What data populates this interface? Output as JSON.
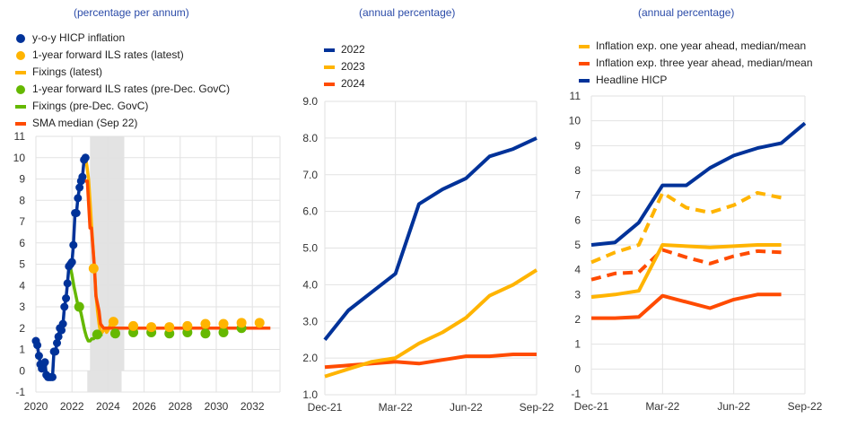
{
  "colors": {
    "blue": "#003299",
    "yellow": "#ffb400",
    "orange": "#ff4b00",
    "green": "#65b800",
    "grid": "#e2e2e2",
    "shade": "#d9d9d9",
    "subtitle": "#2b4ba8"
  },
  "chart_data": [
    {
      "type": "line",
      "title": "(percentage per annum)",
      "xlabel": "",
      "ylabel": "",
      "xlim": [
        2020,
        2033.5
      ],
      "ylim": [
        -1,
        11
      ],
      "x_ticks": [
        "2020",
        "2022",
        "2024",
        "2026",
        "2028",
        "2030",
        "2032"
      ],
      "y_ticks": [
        "-1",
        "0",
        "1",
        "2",
        "3",
        "4",
        "5",
        "6",
        "7",
        "8",
        "9",
        "10",
        "11"
      ],
      "grid": true,
      "legend_position": "top-left",
      "shaded_range": [
        2022.9,
        2024.9
      ],
      "legend": [
        {
          "label": "y-o-y HICP inflation",
          "symbol": "dot",
          "color": "#003299"
        },
        {
          "label": "1-year forward ILS rates (latest)",
          "symbol": "dot",
          "color": "#ffb400"
        },
        {
          "label": "Fixings (latest)",
          "symbol": "bar",
          "color": "#ffb400"
        },
        {
          "label": "1-year forward ILS rates (pre-Dec. GovC)",
          "symbol": "dot",
          "color": "#65b800"
        },
        {
          "label": "Fixings (pre-Dec. GovC)",
          "symbol": "bar",
          "color": "#65b800"
        },
        {
          "label": "SMA median (Sep 22)",
          "symbol": "bar",
          "color": "#ff4b00"
        }
      ],
      "series": [
        {
          "name": "y-o-y HICP inflation",
          "style": "line-markers",
          "color": "#003299",
          "x": [
            2020.0,
            2020.08,
            2020.17,
            2020.25,
            2020.33,
            2020.42,
            2020.5,
            2020.58,
            2020.67,
            2020.75,
            2020.83,
            2020.92,
            2021.0,
            2021.08,
            2021.17,
            2021.25,
            2021.33,
            2021.42,
            2021.5,
            2021.58,
            2021.67,
            2021.75,
            2021.83,
            2021.92,
            2022.0,
            2022.08,
            2022.17,
            2022.25,
            2022.33,
            2022.42,
            2022.5,
            2022.58,
            2022.67,
            2022.75
          ],
          "values": [
            1.4,
            1.2,
            0.7,
            0.3,
            0.1,
            0.3,
            0.4,
            -0.2,
            -0.3,
            -0.3,
            -0.3,
            -0.3,
            0.9,
            0.9,
            1.3,
            1.6,
            2.0,
            1.9,
            2.2,
            3.0,
            3.4,
            4.1,
            4.9,
            5.0,
            5.1,
            5.9,
            7.4,
            7.4,
            8.1,
            8.6,
            8.9,
            9.1,
            9.9,
            10.0
          ]
        },
        {
          "name": "Fixings (latest)",
          "style": "line",
          "color": "#ffb400",
          "x": [
            2022.75,
            2022.83,
            2022.92,
            2023.0,
            2023.08,
            2023.17,
            2023.25,
            2023.33,
            2023.42,
            2023.5,
            2023.58,
            2023.67,
            2023.75,
            2023.83,
            2023.92,
            2024.0,
            2024.1,
            2024.2
          ],
          "values": [
            10.0,
            9.6,
            9.0,
            8.0,
            6.9,
            5.8,
            4.8,
            3.6,
            2.8,
            2.2,
            1.8,
            1.8,
            1.9,
            2.0,
            1.8,
            1.9,
            2.1,
            2.3
          ]
        },
        {
          "name": "SMA median (Sep 22)",
          "style": "line",
          "color": "#ff4b00",
          "x": [
            2022.6,
            2022.75,
            2022.85,
            2023.0,
            2023.08,
            2023.25,
            2023.33,
            2023.5,
            2023.58,
            2023.75,
            2024.0,
            2025.0,
            2026.0,
            2027.0,
            2028.0,
            2029.0,
            2031.0,
            2033.0
          ],
          "values": [
            9.0,
            8.9,
            8.9,
            6.7,
            6.7,
            4.8,
            3.5,
            2.8,
            2.2,
            2.0,
            2.0,
            2.0,
            2.0,
            2.0,
            2.0,
            2.0,
            2.0,
            2.0
          ]
        },
        {
          "name": "Fixings (pre-Dec. GovC)",
          "style": "line",
          "color": "#65b800",
          "x": [
            2021.9,
            2022.0,
            2022.1,
            2022.2,
            2022.3,
            2022.4,
            2022.5,
            2022.6,
            2022.7,
            2022.8,
            2022.9,
            2023.0,
            2023.1,
            2023.2,
            2023.3,
            2023.4,
            2023.5,
            2023.6,
            2023.7
          ],
          "values": [
            4.9,
            4.5,
            4.0,
            3.6,
            3.2,
            3.0,
            2.7,
            2.3,
            1.9,
            1.6,
            1.4,
            1.4,
            1.5,
            1.5,
            1.6,
            1.6,
            1.7,
            1.7,
            1.7
          ]
        },
        {
          "name": "1-year forward ILS rates (latest)",
          "style": "markers",
          "color": "#ffb400",
          "x": [
            2023.2,
            2024.3,
            2025.4,
            2026.4,
            2027.4,
            2028.4,
            2029.4,
            2030.4,
            2031.4,
            2032.4
          ],
          "values": [
            4.8,
            2.3,
            2.1,
            2.05,
            2.05,
            2.1,
            2.2,
            2.2,
            2.25,
            2.25
          ]
        },
        {
          "name": "1-year forward ILS rates (pre-Dec. GovC)",
          "style": "markers",
          "color": "#65b800",
          "x": [
            2022.4,
            2023.4,
            2024.4,
            2025.4,
            2026.4,
            2027.4,
            2028.4,
            2029.4,
            2030.4,
            2031.4
          ],
          "values": [
            3.0,
            1.7,
            1.75,
            1.8,
            1.8,
            1.75,
            1.8,
            1.75,
            1.8,
            2.0
          ]
        }
      ]
    },
    {
      "type": "line",
      "title": "(annual percentage)",
      "xlabel": "",
      "ylabel": "",
      "categories": [
        "Dec-21",
        "Jan-22",
        "Feb-22",
        "Mar-22",
        "Apr-22",
        "May-22",
        "Jun-22",
        "Jul-22",
        "Aug-22",
        "Sep-22"
      ],
      "x_ticks": [
        "Dec-21",
        "Mar-22",
        "Jun-22",
        "Sep-22"
      ],
      "y_ticks": [
        "1.0",
        "2.0",
        "3.0",
        "4.0",
        "5.0",
        "6.0",
        "7.0",
        "8.0",
        "9.0"
      ],
      "ylim": [
        1.0,
        9.0
      ],
      "grid": true,
      "legend_position": "top-left",
      "legend": [
        {
          "label": "2022",
          "color": "#003299"
        },
        {
          "label": "2023",
          "color": "#ffb400"
        },
        {
          "label": "2024",
          "color": "#ff4b00"
        }
      ],
      "series": [
        {
          "name": "2022",
          "color": "#003299",
          "values": [
            2.5,
            3.3,
            3.8,
            4.3,
            6.2,
            6.6,
            6.9,
            7.5,
            7.7,
            8.0
          ]
        },
        {
          "name": "2023",
          "color": "#ffb400",
          "values": [
            1.5,
            1.7,
            1.9,
            2.0,
            2.4,
            2.7,
            3.1,
            3.7,
            4.0,
            4.4
          ]
        },
        {
          "name": "2024",
          "color": "#ff4b00",
          "values": [
            1.75,
            1.8,
            1.85,
            1.9,
            1.85,
            1.95,
            2.05,
            2.05,
            2.1,
            2.1
          ]
        }
      ]
    },
    {
      "type": "line",
      "title": "(annual percentage)",
      "xlabel": "",
      "ylabel": "",
      "categories": [
        "Dec-21",
        "Jan-22",
        "Feb-22",
        "Mar-22",
        "Apr-22",
        "May-22",
        "Jun-22",
        "Jul-22",
        "Aug-22",
        "Sep-22"
      ],
      "x_ticks": [
        "Dec-21",
        "Mar-22",
        "Jun-22",
        "Sep-22"
      ],
      "y_ticks": [
        "-1",
        "0",
        "1",
        "2",
        "3",
        "4",
        "5",
        "6",
        "7",
        "8",
        "9",
        "10",
        "11"
      ],
      "ylim": [
        -1,
        11
      ],
      "grid": true,
      "legend_position": "top-left",
      "legend": [
        {
          "label": "Inflation exp. one year ahead, median/mean",
          "color": "#ffb400"
        },
        {
          "label": "Inflation exp. three year ahead, median/mean",
          "color": "#ff4b00"
        },
        {
          "label": "Headline HICP",
          "color": "#003299"
        }
      ],
      "series": [
        {
          "name": "Headline HICP",
          "color": "#003299",
          "dash": false,
          "values": [
            5.0,
            5.1,
            5.9,
            7.4,
            7.4,
            8.1,
            8.6,
            8.9,
            9.1,
            9.9
          ]
        },
        {
          "name": "Inflation exp. one year ahead, mean",
          "color": "#ffb400",
          "dash": true,
          "values": [
            4.3,
            4.7,
            5.0,
            7.1,
            6.5,
            6.3,
            6.6,
            7.1,
            6.9
          ]
        },
        {
          "name": "Inflation exp. one year ahead, median",
          "color": "#ffb400",
          "dash": false,
          "values": [
            2.9,
            3.0,
            3.15,
            5.0,
            4.95,
            4.9,
            4.95,
            5.0,
            5.0
          ]
        },
        {
          "name": "Inflation exp. three year ahead, mean",
          "color": "#ff4b00",
          "dash": true,
          "values": [
            3.6,
            3.85,
            3.9,
            4.8,
            4.5,
            4.25,
            4.55,
            4.75,
            4.7
          ]
        },
        {
          "name": "Inflation exp. three year ahead, median",
          "color": "#ff4b00",
          "dash": false,
          "values": [
            2.05,
            2.05,
            2.1,
            2.95,
            2.7,
            2.45,
            2.8,
            3.0,
            3.0
          ]
        }
      ]
    }
  ]
}
